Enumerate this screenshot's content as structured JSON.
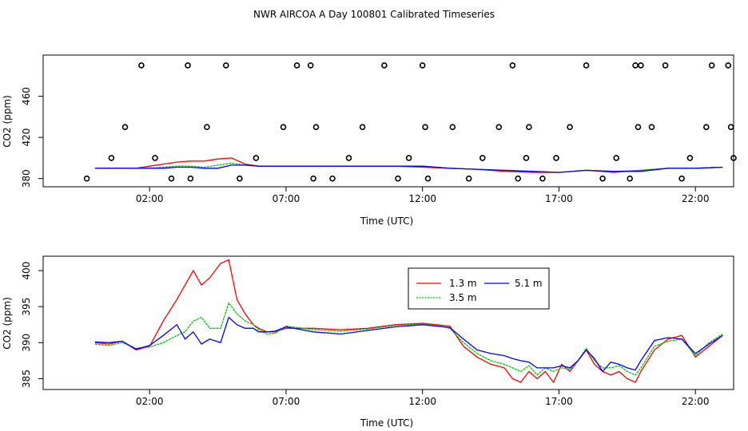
{
  "title": "NWR AIRCOA A  Day 100801  Calibrated Timeseries",
  "chart_data": [
    {
      "type": "line",
      "name": "top-panel",
      "xlabel": "Time (UTC)",
      "ylabel": "CO2 (ppm)",
      "xlim": [
        -1.9,
        23.4
      ],
      "ylim": [
        372,
        500
      ],
      "xticks": [
        2,
        7,
        12,
        17,
        22
      ],
      "xtick_labels": [
        "02:00",
        "07:00",
        "12:00",
        "17:00",
        "22:00"
      ],
      "yticks": [
        380,
        420,
        460
      ],
      "ytick_labels": [
        "380",
        "420",
        "460"
      ],
      "series": [
        {
          "name": "1.3 m",
          "color": "#ff0000",
          "x": [
            0,
            0.5,
            1,
            1.5,
            2,
            2.5,
            3,
            3.5,
            4,
            4.5,
            5,
            5.5,
            6,
            7,
            8,
            9,
            10,
            11,
            12,
            13,
            14,
            15,
            16,
            17,
            18,
            19,
            20,
            21,
            22,
            23
          ],
          "values": [
            390,
            390,
            390,
            390,
            392,
            394,
            396,
            397,
            397,
            399,
            400,
            394,
            392,
            392,
            392,
            392,
            392,
            392,
            391,
            390,
            389,
            387,
            386,
            386,
            388,
            386,
            388,
            390,
            390,
            391
          ]
        },
        {
          "name": "3.5 m",
          "color": "#00c000",
          "x": [
            0,
            0.5,
            1,
            1.5,
            2,
            2.5,
            3,
            3.5,
            4,
            4.5,
            5,
            5.5,
            6,
            7,
            8,
            9,
            10,
            11,
            12,
            13,
            14,
            15,
            16,
            17,
            18,
            19,
            20,
            21,
            22,
            23
          ],
          "values": [
            390,
            390,
            390,
            390,
            390,
            391,
            392,
            392,
            391,
            393,
            395,
            393,
            392,
            392,
            392,
            392,
            392,
            392,
            392,
            390,
            389,
            388,
            387,
            386,
            388,
            387,
            388,
            390,
            390,
            391
          ]
        },
        {
          "name": "5.1 m",
          "color": "#0000ff",
          "x": [
            0,
            0.5,
            1,
            1.5,
            2,
            2.5,
            3,
            3.5,
            4,
            4.5,
            5,
            5.5,
            6,
            7,
            8,
            9,
            10,
            11,
            12,
            13,
            14,
            15,
            16,
            17,
            18,
            19,
            20,
            21,
            22,
            23
          ],
          "values": [
            390,
            390,
            390,
            390,
            390,
            390,
            391,
            391,
            390,
            390,
            393,
            393,
            392,
            392,
            392,
            392,
            392,
            392,
            392,
            390,
            389,
            388,
            387,
            386,
            388,
            387,
            387,
            390,
            390,
            391
          ]
        }
      ],
      "markers": {
        "symbol": "open-circle",
        "x": [
          -0.3,
          0.6,
          1.1,
          1.7,
          2.2,
          2.8,
          3.4,
          3.5,
          4.1,
          4.8,
          5.3,
          5.9,
          6.9,
          7.4,
          7.9,
          8.0,
          8.1,
          8.7,
          9.3,
          9.8,
          10.6,
          11.1,
          11.5,
          12.0,
          12.1,
          12.2,
          13.1,
          13.7,
          14.2,
          14.8,
          15.3,
          15.5,
          15.8,
          15.9,
          16.4,
          16.9,
          17.4,
          18.0,
          18.6,
          19.1,
          19.6,
          19.8,
          19.9,
          20.0,
          20.4,
          20.9,
          21.5,
          21.8,
          22.4,
          22.6,
          23.2,
          23.3,
          23.4
        ],
        "values": [
          380,
          400,
          430,
          490,
          400,
          380,
          490,
          380,
          430,
          490,
          380,
          400,
          430,
          490,
          490,
          380,
          430,
          380,
          400,
          430,
          490,
          380,
          400,
          490,
          430,
          380,
          430,
          380,
          400,
          430,
          490,
          380,
          400,
          430,
          380,
          400,
          430,
          490,
          380,
          400,
          380,
          490,
          430,
          490,
          430,
          490,
          380,
          400,
          430,
          490,
          490,
          430,
          400
        ]
      }
    },
    {
      "type": "line",
      "name": "bottom-panel",
      "xlabel": "Time (UTC)",
      "ylabel": "CO2 (ppm)",
      "xlim": [
        -1.9,
        23.4
      ],
      "ylim": [
        383.5,
        402
      ],
      "xticks": [
        2,
        7,
        12,
        17,
        22
      ],
      "xtick_labels": [
        "02:00",
        "07:00",
        "12:00",
        "17:00",
        "22:00"
      ],
      "yticks": [
        385,
        390,
        395,
        400
      ],
      "ytick_labels": [
        "385",
        "390",
        "395",
        "400"
      ],
      "legend": {
        "position": "inside-top-right",
        "entries": [
          "1.3 m",
          "3.5 m",
          "5.1 m"
        ]
      },
      "series": [
        {
          "name": "1.3 m",
          "color": "#ff0000",
          "x": [
            0,
            0.5,
            1,
            1.5,
            2,
            2.5,
            3,
            3.3,
            3.6,
            3.9,
            4.2,
            4.6,
            4.9,
            5.2,
            5.5,
            5.8,
            6,
            6.3,
            6.6,
            7,
            8,
            9,
            10,
            11,
            12,
            12.5,
            13,
            13.5,
            14,
            14.5,
            15,
            15.3,
            15.6,
            15.9,
            16.2,
            16.5,
            16.8,
            17.1,
            17.4,
            17.7,
            18,
            18.3,
            18.6,
            18.9,
            19.2,
            19.5,
            19.8,
            20,
            20.5,
            21,
            21.5,
            22,
            22.5,
            23
          ],
          "values": [
            390,
            389.8,
            390.2,
            389,
            389.5,
            393,
            396,
            398,
            400,
            398,
            399,
            401,
            401.5,
            396,
            394,
            392.5,
            392,
            391.5,
            391.5,
            392,
            392,
            391.8,
            392,
            392.5,
            392.7,
            392.5,
            392.3,
            389.5,
            388,
            387,
            386.5,
            385,
            384.5,
            386,
            385,
            386,
            384.5,
            387,
            386,
            387.5,
            389,
            387,
            386,
            385.5,
            386,
            385,
            384.5,
            386,
            389,
            390.5,
            391,
            388,
            389.5,
            391
          ]
        },
        {
          "name": "3.5 m",
          "color": "#00c000",
          "x": [
            0,
            0.5,
            1,
            1.5,
            2,
            2.5,
            3,
            3.3,
            3.6,
            3.9,
            4.2,
            4.6,
            4.9,
            5.2,
            5.5,
            5.8,
            6,
            6.3,
            6.6,
            7,
            8,
            9,
            10,
            11,
            12,
            12.5,
            13,
            13.5,
            14,
            14.5,
            15,
            15.3,
            15.6,
            15.9,
            16.2,
            16.5,
            16.8,
            17.1,
            17.4,
            17.7,
            18,
            18.3,
            18.6,
            18.9,
            19.2,
            19.5,
            19.8,
            20,
            20.5,
            21,
            21.5,
            22,
            22.5,
            23
          ],
          "values": [
            389.8,
            389.6,
            390,
            389.2,
            389.4,
            390,
            391,
            391.5,
            393,
            393.5,
            392,
            392,
            395.5,
            394,
            393,
            392.5,
            391.8,
            391.2,
            391.3,
            392.3,
            391.8,
            391.6,
            391.9,
            392.4,
            392.6,
            392.4,
            392,
            390,
            388.5,
            387.5,
            387,
            386.5,
            386,
            386.8,
            385.5,
            386.5,
            386,
            386.5,
            386.3,
            387.5,
            389.2,
            387.5,
            386.5,
            386.5,
            386.8,
            386,
            385.5,
            386.5,
            389.5,
            390.2,
            390.5,
            388.2,
            390,
            391.2
          ]
        },
        {
          "name": "5.1 m",
          "color": "#0000ff",
          "x": [
            0,
            0.5,
            1,
            1.5,
            2,
            2.5,
            3,
            3.3,
            3.6,
            3.9,
            4.2,
            4.6,
            4.9,
            5.2,
            5.5,
            5.8,
            6,
            6.3,
            6.6,
            7,
            8,
            9,
            10,
            11,
            12,
            12.5,
            13,
            13.5,
            14,
            14.5,
            15,
            15.3,
            15.6,
            15.9,
            16.2,
            16.5,
            16.8,
            17.1,
            17.4,
            17.7,
            18,
            18.3,
            18.6,
            18.9,
            19.2,
            19.5,
            19.8,
            20,
            20.5,
            21,
            21.5,
            22,
            22.5,
            23
          ],
          "values": [
            390.1,
            390,
            390.2,
            389.1,
            389.6,
            391,
            392.5,
            390.5,
            391.5,
            389.8,
            390.5,
            390,
            393.5,
            392.5,
            392,
            392,
            391.5,
            391.5,
            391.6,
            392.2,
            391.5,
            391.2,
            391.7,
            392.2,
            392.5,
            392.3,
            392.1,
            390.5,
            389,
            388.5,
            388.2,
            387.8,
            387.5,
            387.3,
            386.5,
            386.5,
            386.5,
            386.8,
            386.5,
            387.5,
            389,
            387.8,
            386,
            387.3,
            387,
            386.5,
            386.2,
            387.5,
            390.3,
            390.7,
            390.5,
            388.5,
            389.8,
            391
          ]
        }
      ]
    }
  ]
}
